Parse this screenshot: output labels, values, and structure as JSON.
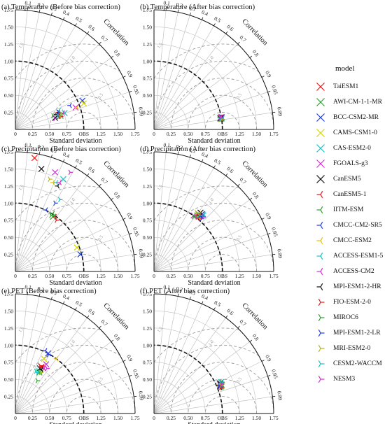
{
  "chart_data": {
    "type": "scatter",
    "subtype": "taylor-diagram",
    "common": {
      "xlabel": "Standard deviation",
      "ylabel": "Standard deviation",
      "axis_title": "Correlation",
      "obs_label": "OBS",
      "sd_range": [
        0,
        1.75
      ],
      "ref_std": 1.0,
      "std_ticks": [
        "0",
        "0.25",
        "0.50",
        "0.75",
        "1.00",
        "1.25",
        "1.50",
        "1.75"
      ],
      "corr_ticks": [
        {
          "label": "0.1",
          "value": 0.1
        },
        {
          "label": "0.2",
          "value": 0.2
        },
        {
          "label": "0.3",
          "value": 0.3
        },
        {
          "label": "0.4",
          "value": 0.4
        },
        {
          "label": "0.5",
          "value": 0.5
        },
        {
          "label": "0.6",
          "value": 0.6
        },
        {
          "label": "0.7",
          "value": 0.7
        },
        {
          "label": "0.8",
          "value": 0.8
        },
        {
          "label": "0.9",
          "value": 0.9
        },
        {
          "label": "0.95",
          "value": 0.95
        },
        {
          "label": "0.99",
          "value": 0.99
        }
      ],
      "crmse_labels": [
        "0.5",
        "1.0",
        "1.5"
      ]
    },
    "legend": {
      "title": "model",
      "placement": "right",
      "entries": [
        {
          "name": "TaiESM1",
          "color": "#e41a1c",
          "marker": "x"
        },
        {
          "name": "AWI-CM-1-1-MR",
          "color": "#2ca02c",
          "marker": "x"
        },
        {
          "name": "BCC-CSM2-MR",
          "color": "#1f3fe0",
          "marker": "x"
        },
        {
          "name": "CAMS-CSM1-0",
          "color": "#d4d400",
          "marker": "x"
        },
        {
          "name": "CAS-ESM2-0",
          "color": "#17c3c3",
          "marker": "x"
        },
        {
          "name": "FGOALS-g3",
          "color": "#d62ad6",
          "marker": "x"
        },
        {
          "name": "CanESM5",
          "color": "#111111",
          "marker": "x"
        },
        {
          "name": "CanESM5-1",
          "color": "#e41a1c",
          "marker": "tri-left"
        },
        {
          "name": "IITM-ESM",
          "color": "#2ca02c",
          "marker": "tri-left"
        },
        {
          "name": "CMCC-CM2-SR5",
          "color": "#1f3fe0",
          "marker": "tri-left"
        },
        {
          "name": "CMCC-ESM2",
          "color": "#e8c000",
          "marker": "tri-left"
        },
        {
          "name": "ACCESS-ESM1-5",
          "color": "#17c3c3",
          "marker": "tri-left"
        },
        {
          "name": "ACCESS-CM2",
          "color": "#d62ad6",
          "marker": "tri-left"
        },
        {
          "name": "MPI-ESM1-2-HR",
          "color": "#111111",
          "marker": "tri-left"
        },
        {
          "name": "FIO-ESM-2-0",
          "color": "#e41a1c",
          "marker": "tri-right"
        },
        {
          "name": "MIROC6",
          "color": "#2ca02c",
          "marker": "tri-right"
        },
        {
          "name": "MPI-ESM1-2-LR",
          "color": "#1f3fe0",
          "marker": "tri-right"
        },
        {
          "name": "MRI-ESM2-0",
          "color": "#b5b51a",
          "marker": "tri-right"
        },
        {
          "name": "CESM2-WACCM",
          "color": "#17c3c3",
          "marker": "tri-right"
        },
        {
          "name": "NESM3",
          "color": "#d62ad6",
          "marker": "tri-right"
        }
      ]
    },
    "panels": [
      {
        "title": "(a) Temperature (Before bias correction)",
        "points": [
          [
            0.62,
            0.2
          ],
          [
            0.66,
            0.2
          ],
          [
            0.98,
            0.42
          ],
          [
            1.0,
            0.38
          ],
          [
            0.72,
            0.24
          ],
          [
            0.88,
            0.32
          ],
          [
            0.58,
            0.17
          ],
          [
            0.63,
            0.25
          ],
          [
            0.65,
            0.22
          ],
          [
            0.8,
            0.35
          ],
          [
            0.9,
            0.32
          ],
          [
            0.64,
            0.28
          ],
          [
            0.7,
            0.24
          ],
          [
            0.6,
            0.22
          ],
          [
            0.66,
            0.19
          ],
          [
            0.55,
            0.2
          ],
          [
            0.63,
            0.25
          ],
          [
            0.68,
            0.22
          ],
          [
            0.62,
            0.2
          ],
          [
            0.58,
            0.16
          ]
        ]
      },
      {
        "title": "(b) Temperature (After bias correction)",
        "points": [
          [
            0.98,
            0.16
          ],
          [
            0.97,
            0.17
          ],
          [
            0.99,
            0.18
          ],
          [
            0.98,
            0.15
          ],
          [
            0.99,
            0.16
          ],
          [
            0.98,
            0.18
          ],
          [
            0.97,
            0.16
          ],
          [
            0.97,
            0.18
          ],
          [
            0.98,
            0.17
          ],
          [
            0.99,
            0.17
          ],
          [
            0.98,
            0.16
          ],
          [
            0.97,
            0.17
          ],
          [
            0.98,
            0.18
          ],
          [
            0.99,
            0.17
          ],
          [
            0.98,
            0.15
          ],
          [
            0.97,
            0.16
          ],
          [
            0.98,
            0.17
          ],
          [
            0.99,
            0.15
          ],
          [
            0.98,
            0.16
          ],
          [
            0.97,
            0.18
          ]
        ]
      },
      {
        "title": "(c) Precipitation (Before bias correction)",
        "points": [
          [
            0.28,
            1.66
          ],
          [
            0.55,
            0.8
          ],
          [
            0.95,
            0.25
          ],
          [
            0.9,
            0.35
          ],
          [
            0.7,
            1.35
          ],
          [
            0.58,
            1.45
          ],
          [
            0.38,
            1.5
          ],
          [
            0.58,
            0.8
          ],
          [
            0.55,
            0.85
          ],
          [
            0.45,
            0.9
          ],
          [
            0.55,
            1.3
          ],
          [
            0.6,
            1.3
          ],
          [
            0.65,
            1.3
          ],
          [
            0.62,
            1.25
          ],
          [
            0.6,
            0.75
          ],
          [
            0.52,
            0.82
          ],
          [
            0.58,
            1.0
          ],
          [
            0.5,
            1.35
          ],
          [
            0.65,
            1.05
          ],
          [
            0.8,
            1.45
          ]
        ]
      },
      {
        "title": "(d) Precipitation (After bias correction)",
        "points": [
          [
            0.66,
            0.8
          ],
          [
            0.63,
            0.82
          ],
          [
            0.7,
            0.84
          ],
          [
            0.64,
            0.8
          ],
          [
            0.72,
            0.82
          ],
          [
            0.58,
            0.82
          ],
          [
            0.68,
            0.86
          ],
          [
            0.65,
            0.78
          ],
          [
            0.62,
            0.82
          ],
          [
            0.7,
            0.8
          ],
          [
            0.66,
            0.84
          ],
          [
            0.73,
            0.84
          ],
          [
            0.6,
            0.8
          ],
          [
            0.68,
            0.82
          ],
          [
            0.64,
            0.84
          ],
          [
            0.58,
            0.8
          ],
          [
            0.7,
            0.78
          ],
          [
            0.62,
            0.86
          ],
          [
            0.66,
            0.82
          ],
          [
            0.72,
            0.8
          ]
        ]
      },
      {
        "title": "(e) PET (Before bias correction)",
        "points": [
          [
            0.38,
            0.68
          ],
          [
            0.35,
            0.6
          ],
          [
            0.48,
            0.88
          ],
          [
            0.42,
            0.8
          ],
          [
            0.35,
            0.62
          ],
          [
            0.45,
            0.72
          ],
          [
            0.36,
            0.66
          ],
          [
            0.4,
            0.68
          ],
          [
            0.33,
            0.62
          ],
          [
            0.44,
            0.92
          ],
          [
            0.6,
            0.8
          ],
          [
            0.34,
            0.6
          ],
          [
            0.42,
            0.66
          ],
          [
            0.38,
            0.64
          ],
          [
            0.36,
            0.7
          ],
          [
            0.32,
            0.48
          ],
          [
            0.48,
            0.86
          ],
          [
            0.37,
            0.6
          ],
          [
            0.3,
            0.62
          ],
          [
            0.46,
            0.66
          ]
        ]
      },
      {
        "title": "(f) PET (After bias correction)",
        "points": [
          [
            0.98,
            0.4
          ],
          [
            0.99,
            0.42
          ],
          [
            0.97,
            0.44
          ],
          [
            0.99,
            0.4
          ],
          [
            0.98,
            0.46
          ],
          [
            0.97,
            0.42
          ],
          [
            0.96,
            0.44
          ],
          [
            0.98,
            0.44
          ],
          [
            0.99,
            0.38
          ],
          [
            0.97,
            0.4
          ],
          [
            0.96,
            0.42
          ],
          [
            0.99,
            0.44
          ],
          [
            0.98,
            0.42
          ],
          [
            0.97,
            0.38
          ],
          [
            0.98,
            0.38
          ],
          [
            0.99,
            0.46
          ],
          [
            0.96,
            0.4
          ],
          [
            0.98,
            0.41
          ],
          [
            0.97,
            0.46
          ],
          [
            0.99,
            0.43
          ]
        ]
      }
    ]
  }
}
